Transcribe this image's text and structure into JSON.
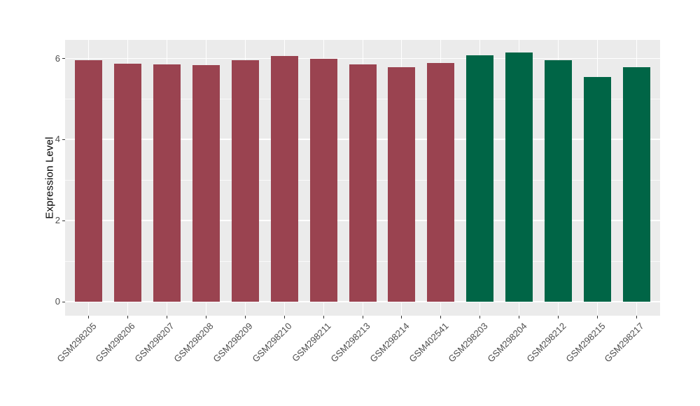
{
  "figure": {
    "background_color": "#FFFFFF",
    "panel_background_color": "#EBEBEB",
    "gridline_color": "#FFFFFF",
    "axis_text_color": "#4D4D4D",
    "axis_title_color": "#000000",
    "tick_mark_color": "#333333"
  },
  "chart_data": {
    "type": "bar",
    "title": "",
    "xlabel": "",
    "ylabel": "Expression Level",
    "categories": [
      "GSM298205",
      "GSM298206",
      "GSM298207",
      "GSM298208",
      "GSM298209",
      "GSM298210",
      "GSM298211",
      "GSM298213",
      "GSM298214",
      "GSM402541",
      "GSM298203",
      "GSM298204",
      "GSM298212",
      "GSM298215",
      "GSM298217"
    ],
    "values": [
      5.96,
      5.88,
      5.86,
      5.83,
      5.95,
      6.06,
      6.0,
      5.85,
      5.79,
      5.89,
      6.08,
      6.15,
      5.96,
      5.54,
      5.78
    ],
    "groups": [
      "group1",
      "group1",
      "group1",
      "group1",
      "group1",
      "group1",
      "group1",
      "group1",
      "group1",
      "group1",
      "group2",
      "group2",
      "group2",
      "group2",
      "group2"
    ],
    "group_colors": {
      "group1": "#9A4350",
      "group2": "#006546"
    },
    "ylim": [
      0,
      6.46
    ],
    "yticks_major": [
      0,
      2,
      4,
      6
    ],
    "yticks_minor": [
      1,
      3,
      5
    ],
    "grid": true,
    "legend_position": "none",
    "x_label_rotation_deg": 45
  }
}
